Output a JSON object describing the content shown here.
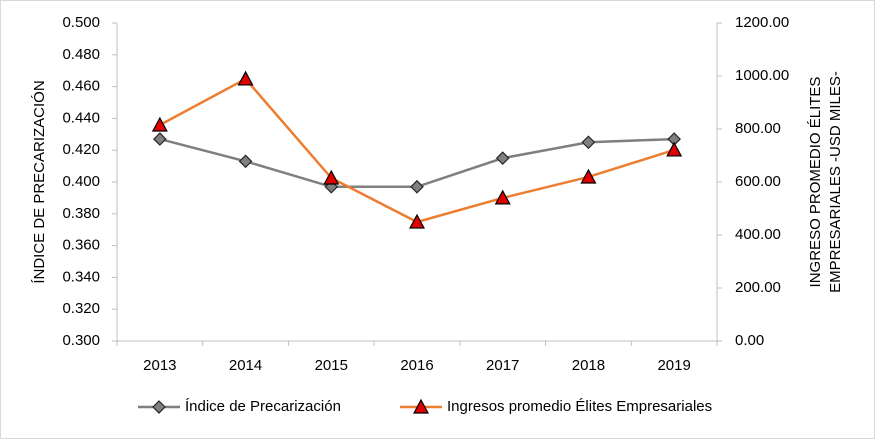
{
  "chart_data": {
    "type": "line",
    "categories": [
      "2013",
      "2014",
      "2015",
      "2016",
      "2017",
      "2018",
      "2019"
    ],
    "ylabel": "ÍNDICE DE PRECARIZACIÓN",
    "y2label": [
      "INGRESO PROMEDIO ÉLITES",
      "EMPRESARIALES -USD MILES-"
    ],
    "ylim": [
      0.3,
      0.5
    ],
    "yticks": [
      {
        "value": 0.3,
        "label": "0.300"
      },
      {
        "value": 0.32,
        "label": "0.320"
      },
      {
        "value": 0.34,
        "label": "0.340"
      },
      {
        "value": 0.36,
        "label": "0.360"
      },
      {
        "value": 0.38,
        "label": "0.380"
      },
      {
        "value": 0.4,
        "label": "0.400"
      },
      {
        "value": 0.42,
        "label": "0.420"
      },
      {
        "value": 0.44,
        "label": "0.440"
      },
      {
        "value": 0.46,
        "label": "0.460"
      },
      {
        "value": 0.48,
        "label": "0.480"
      },
      {
        "value": 0.5,
        "label": "0.500"
      }
    ],
    "y2lim": [
      0,
      1200
    ],
    "y2ticks": [
      {
        "value": 0,
        "label": "0.00"
      },
      {
        "value": 200,
        "label": "200.00"
      },
      {
        "value": 400,
        "label": "400.00"
      },
      {
        "value": 600,
        "label": "600.00"
      },
      {
        "value": 800,
        "label": "800.00"
      },
      {
        "value": 1000,
        "label": "1000.00"
      },
      {
        "value": 1200,
        "label": "1200.00"
      }
    ],
    "grid": false,
    "series": [
      {
        "name": "Índice de Precarización",
        "color": "#7f7f7f",
        "marker": "diamond",
        "values": [
          0.427,
          0.413,
          0.397,
          0.397,
          0.415,
          0.425,
          0.427
        ]
      },
      {
        "name": "Ingresos promedio Élites Empresariales",
        "color": "#ed7d31",
        "marker": "triangle",
        "axis": "y2",
        "values": [
          815,
          989,
          615,
          449,
          540,
          619,
          721
        ]
      }
    ]
  }
}
